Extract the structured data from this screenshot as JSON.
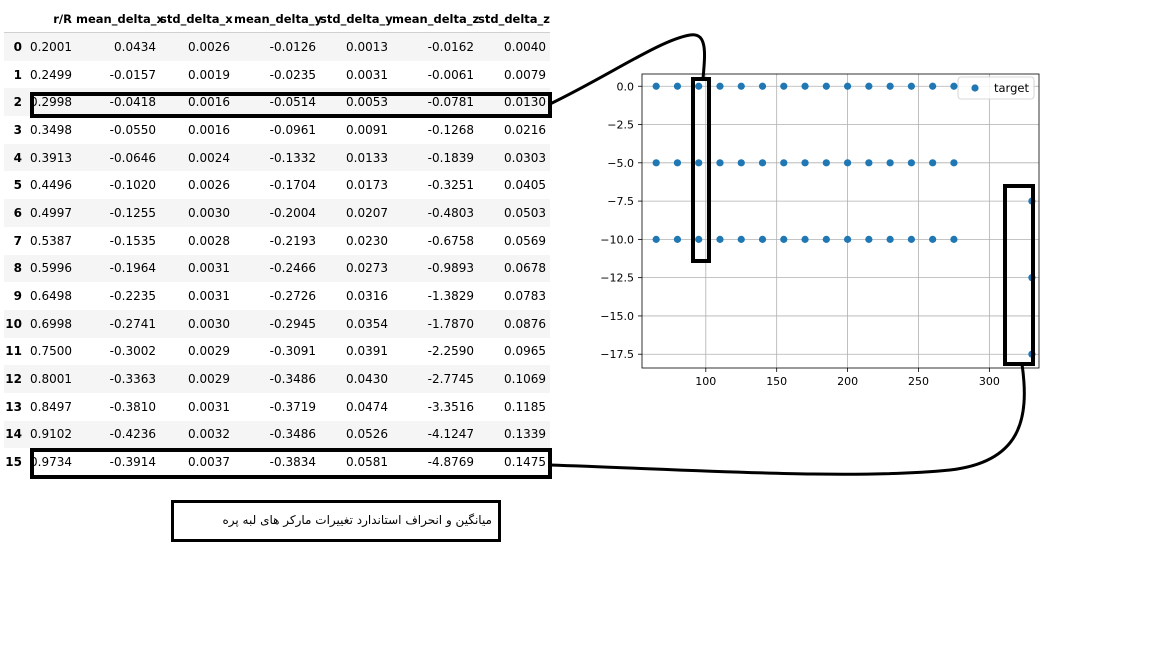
{
  "table": {
    "columns": [
      "",
      "r/R",
      "mean_delta_x",
      "std_delta_x",
      "mean_delta_y",
      "std_delta_y",
      "mean_delta_z",
      "std_delta_z"
    ],
    "rows": [
      [
        "0",
        "0.2001",
        "0.0434",
        "0.0026",
        "-0.0126",
        "0.0013",
        "-0.0162",
        "0.0040"
      ],
      [
        "1",
        "0.2499",
        "-0.0157",
        "0.0019",
        "-0.0235",
        "0.0031",
        "-0.0061",
        "0.0079"
      ],
      [
        "2",
        "0.2998",
        "-0.0418",
        "0.0016",
        "-0.0514",
        "0.0053",
        "-0.0781",
        "0.0130"
      ],
      [
        "3",
        "0.3498",
        "-0.0550",
        "0.0016",
        "-0.0961",
        "0.0091",
        "-0.1268",
        "0.0216"
      ],
      [
        "4",
        "0.3913",
        "-0.0646",
        "0.0024",
        "-0.1332",
        "0.0133",
        "-0.1839",
        "0.0303"
      ],
      [
        "5",
        "0.4496",
        "-0.1020",
        "0.0026",
        "-0.1704",
        "0.0173",
        "-0.3251",
        "0.0405"
      ],
      [
        "6",
        "0.4997",
        "-0.1255",
        "0.0030",
        "-0.2004",
        "0.0207",
        "-0.4803",
        "0.0503"
      ],
      [
        "7",
        "0.5387",
        "-0.1535",
        "0.0028",
        "-0.2193",
        "0.0230",
        "-0.6758",
        "0.0569"
      ],
      [
        "8",
        "0.5996",
        "-0.1964",
        "0.0031",
        "-0.2466",
        "0.0273",
        "-0.9893",
        "0.0678"
      ],
      [
        "9",
        "0.6498",
        "-0.2235",
        "0.0031",
        "-0.2726",
        "0.0316",
        "-1.3829",
        "0.0783"
      ],
      [
        "10",
        "0.6998",
        "-0.2741",
        "0.0030",
        "-0.2945",
        "0.0354",
        "-1.7870",
        "0.0876"
      ],
      [
        "11",
        "0.7500",
        "-0.3002",
        "0.0029",
        "-0.3091",
        "0.0391",
        "-2.2590",
        "0.0965"
      ],
      [
        "12",
        "0.8001",
        "-0.3363",
        "0.0029",
        "-0.3486",
        "0.0430",
        "-2.7745",
        "0.1069"
      ],
      [
        "13",
        "0.8497",
        "-0.3810",
        "0.0031",
        "-0.3719",
        "0.0474",
        "-3.3516",
        "0.1185"
      ],
      [
        "14",
        "0.9102",
        "-0.4236",
        "0.0032",
        "-0.3486",
        "0.0526",
        "-4.1247",
        "0.1339"
      ],
      [
        "15",
        "0.9734",
        "-0.3914",
        "0.0037",
        "-0.3834",
        "0.0581",
        "-4.8769",
        "0.1475"
      ]
    ],
    "highlighted_rows": [
      "2",
      "15"
    ]
  },
  "chart_data": {
    "type": "scatter",
    "series": [
      {
        "name": "target",
        "color": "#1f77b4",
        "points": [
          [
            65,
            0
          ],
          [
            80,
            0
          ],
          [
            95,
            0
          ],
          [
            110,
            0
          ],
          [
            125,
            0
          ],
          [
            140,
            0
          ],
          [
            155,
            0
          ],
          [
            170,
            0
          ],
          [
            185,
            0
          ],
          [
            200,
            0
          ],
          [
            215,
            0
          ],
          [
            230,
            0
          ],
          [
            245,
            0
          ],
          [
            260,
            0
          ],
          [
            275,
            0
          ],
          [
            65,
            -5
          ],
          [
            80,
            -5
          ],
          [
            95,
            -5
          ],
          [
            110,
            -5
          ],
          [
            125,
            -5
          ],
          [
            140,
            -5
          ],
          [
            155,
            -5
          ],
          [
            170,
            -5
          ],
          [
            185,
            -5
          ],
          [
            200,
            -5
          ],
          [
            215,
            -5
          ],
          [
            230,
            -5
          ],
          [
            245,
            -5
          ],
          [
            260,
            -5
          ],
          [
            275,
            -5
          ],
          [
            65,
            -10
          ],
          [
            80,
            -10
          ],
          [
            95,
            -10
          ],
          [
            110,
            -10
          ],
          [
            125,
            -10
          ],
          [
            140,
            -10
          ],
          [
            155,
            -10
          ],
          [
            170,
            -10
          ],
          [
            185,
            -10
          ],
          [
            200,
            -10
          ],
          [
            215,
            -10
          ],
          [
            230,
            -10
          ],
          [
            245,
            -10
          ],
          [
            260,
            -10
          ],
          [
            275,
            -10
          ],
          [
            330,
            -7.5
          ],
          [
            330,
            -12.5
          ],
          [
            330,
            -17.5
          ]
        ]
      }
    ],
    "xlim": [
      55,
      335
    ],
    "ylim": [
      -18.4,
      0.8
    ],
    "xticks": [
      100,
      150,
      200,
      250,
      300
    ],
    "yticks": [
      0.0,
      -2.5,
      -5.0,
      -7.5,
      -10.0,
      -12.5,
      -15.0,
      -17.5
    ],
    "ytick_labels": [
      "0.0",
      "−2.5",
      "−5.0",
      "−7.5",
      "−10.0",
      "−12.5",
      "−15.0",
      "−17.5"
    ],
    "legend": "top-right",
    "grid": true,
    "highlighted_columns": [
      95,
      330
    ]
  },
  "note": {
    "text": "میانگین و انحراف استاندارد تغییرات مارکر های لبه پره"
  }
}
